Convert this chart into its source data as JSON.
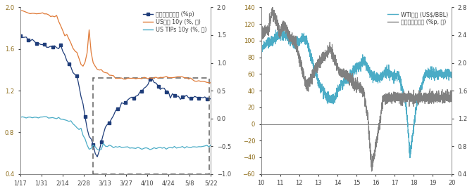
{
  "left_chart": {
    "xlabels": [
      "1/17",
      "1/31",
      "2/14",
      "2/28",
      "3/13",
      "3/27",
      "4/10",
      "4/24",
      "5/8",
      "5/22"
    ],
    "left_ylim": [
      0.4,
      2.0
    ],
    "left_yticks": [
      0.4,
      0.8,
      1.2,
      1.6,
      2.0
    ],
    "right_ylim": [
      -1.0,
      2.0
    ],
    "right_yticks": [
      -1.0,
      -0.5,
      0.0,
      0.5,
      1.0,
      1.5,
      2.0
    ],
    "legend": [
      "기대물가상승률 (%p)",
      "US국칄 10y (%, 우)",
      "US TIPs 10y (%, 우)"
    ],
    "colors": [
      "#1f3d7a",
      "#e07b39",
      "#4bacc6"
    ]
  },
  "right_chart": {
    "xlabels": [
      "10",
      "11",
      "12",
      "13",
      "14",
      "15",
      "16",
      "17",
      "18",
      "19",
      "20"
    ],
    "left_ylim": [
      -60,
      140
    ],
    "right_ylim": [
      0.4,
      2.8
    ],
    "right_yticks": [
      0.4,
      0.8,
      1.2,
      1.6,
      2.0,
      2.4,
      2.8
    ],
    "legend": [
      "WTI유가 (US$/BBL)",
      "기대물가상승률 (%p, 우)"
    ],
    "colors": [
      "#4bacc6",
      "#808080"
    ]
  },
  "bg_color": "#ffffff",
  "axis_color": "#888888",
  "font_color": "#404040",
  "left_yaxis_color": "#8B6914"
}
